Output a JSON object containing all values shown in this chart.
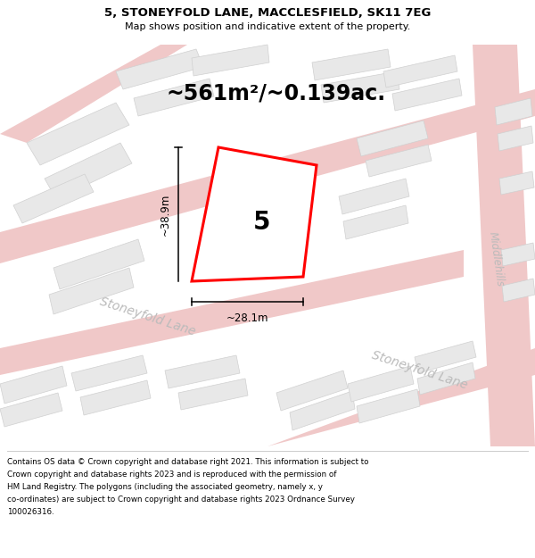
{
  "title": "5, STONEYFOLD LANE, MACCLESFIELD, SK11 7EG",
  "subtitle": "Map shows position and indicative extent of the property.",
  "area_text": "~561m²/~0.139ac.",
  "label_5": "5",
  "dim_width": "~28.1m",
  "dim_height": "~38.9m",
  "street_label1": "Stoneyfold Lane",
  "street_label2": "Stoneyfold Lane",
  "street_label3": "Middlehills",
  "footer_lines": [
    "Contains OS data © Crown copyright and database right 2021. This information is subject to",
    "Crown copyright and database rights 2023 and is reproduced with the permission of",
    "HM Land Registry. The polygons (including the associated geometry, namely x, y",
    "co-ordinates) are subject to Crown copyright and database rights 2023 Ordnance Survey",
    "100026316."
  ],
  "plot_color": "#ff0000",
  "road_color": "#f0c8c8",
  "building_fill": "#e8e8e8",
  "building_edge": "#d0d0d0",
  "road_label_color": "#bbbbbb",
  "title_fontsize": 9.5,
  "subtitle_fontsize": 8,
  "area_fontsize": 17,
  "label5_fontsize": 20,
  "dim_fontsize": 8.5,
  "street_fontsize": 10,
  "footer_fontsize": 6.3
}
